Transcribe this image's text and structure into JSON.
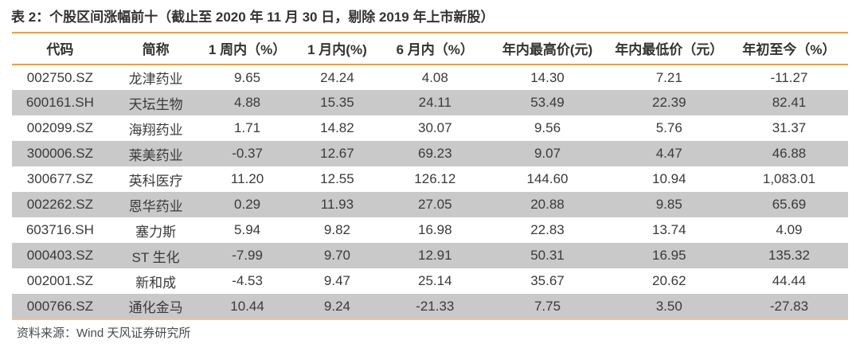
{
  "title": "表 2：个股区间涨幅前十（截止至 2020 年 11 月 30 日，剔除 2019 年上市新股）",
  "colors": {
    "accent_orange": "#EF9D4A",
    "accent_orange_light": "#F5C394",
    "row_alt_gray": "#C9C9C9",
    "text_dark": "#333333"
  },
  "table": {
    "columns": [
      "代码",
      "简称",
      "1 周内（%）",
      "1 月内(%)",
      "6 月内（%）",
      "年内最高价(元)",
      "年内最低价（元）",
      "年初至今（%）"
    ],
    "rows": [
      [
        "002750.SZ",
        "龙津药业",
        "9.65",
        "24.24",
        "4.08",
        "14.30",
        "7.21",
        "-11.27"
      ],
      [
        "600161.SH",
        "天坛生物",
        "4.88",
        "15.35",
        "24.11",
        "53.49",
        "22.39",
        "82.41"
      ],
      [
        "002099.SZ",
        "海翔药业",
        "1.71",
        "14.82",
        "30.07",
        "9.56",
        "5.76",
        "31.37"
      ],
      [
        "300006.SZ",
        "莱美药业",
        "-0.37",
        "12.67",
        "69.23",
        "9.07",
        "4.47",
        "46.88"
      ],
      [
        "300677.SZ",
        "英科医疗",
        "11.20",
        "12.55",
        "126.12",
        "144.60",
        "10.94",
        "1,083.01"
      ],
      [
        "002262.SZ",
        "恩华药业",
        "0.29",
        "11.93",
        "27.05",
        "20.88",
        "9.85",
        "65.69"
      ],
      [
        "603716.SH",
        "塞力斯",
        "5.94",
        "9.82",
        "16.98",
        "22.83",
        "13.74",
        "4.09"
      ],
      [
        "000403.SZ",
        "ST 生化",
        "-7.99",
        "9.70",
        "12.91",
        "50.31",
        "16.95",
        "135.32"
      ],
      [
        "002001.SZ",
        "新和成",
        "-4.53",
        "9.47",
        "25.14",
        "35.67",
        "20.62",
        "44.44"
      ],
      [
        "000766.SZ",
        "通化金马",
        "10.44",
        "9.24",
        "-21.33",
        "7.75",
        "3.50",
        "-27.83"
      ]
    ]
  },
  "footer": {
    "source": "资料来源：Wind 天风证券研究所"
  }
}
